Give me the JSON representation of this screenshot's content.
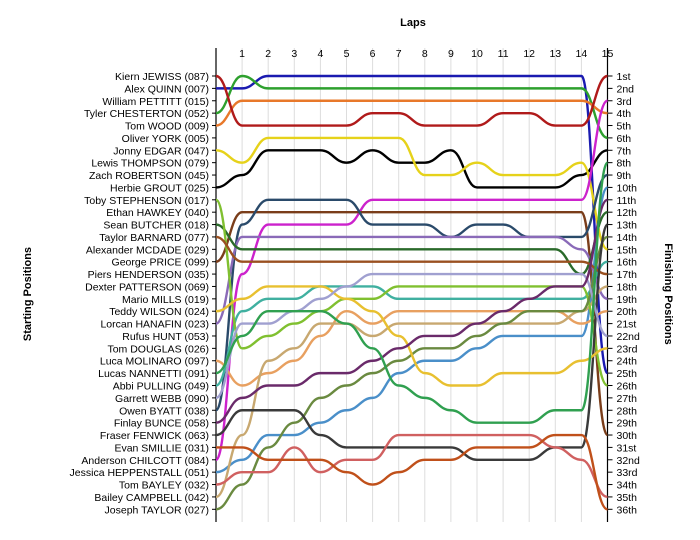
{
  "chart_data": {
    "type": "line",
    "title": "Laps",
    "xlabel": "Laps",
    "ylabel_left": "Starting Positions",
    "ylabel_right": "Finishing Positions",
    "x": [
      0,
      1,
      2,
      3,
      4,
      5,
      6,
      7,
      8,
      9,
      10,
      11,
      12,
      13,
      14,
      15
    ],
    "x_tick_labels": [
      "1",
      "2",
      "3",
      "4",
      "5",
      "6",
      "7",
      "8",
      "9",
      "10",
      "11",
      "12",
      "13",
      "14",
      "15"
    ],
    "driver_labels": [
      "Kiern JEWISS (087)",
      "Alex QUINN (007)",
      "William PETTITT (015)",
      "Tyler CHESTERTON (052)",
      "Tom WOOD (009)",
      "Oliver YORK (005)",
      "Jonny EDGAR (047)",
      "Lewis THOMPSON (079)",
      "Zach ROBERTSON (045)",
      "Herbie GROUT (025)",
      "Toby STEPHENSON (017)",
      "Ethan HAWKEY (040)",
      "Sean BUTCHER (018)",
      "Taylor BARNARD (077)",
      "Alexander MCDADE (029)",
      "George PRICE (099)",
      "Piers HENDERSON (035)",
      "Dexter PATTERSON (069)",
      "Mario MILLS (019)",
      "Teddy WILSON (024)",
      "Lorcan HANAFIN (023)",
      "Rufus HUNT (053)",
      "Tom DOUGLAS (026)",
      "Luca MOLINARO (097)",
      "Lucas NANNETTI (091)",
      "Abbi PULLING (049)",
      "Garrett WEBB (090)",
      "Owen BYATT (038)",
      "Finlay BUNCE (058)",
      "Fraser FENWICK (063)",
      "Evan SMILLIE (031)",
      "Anderson CHILCOTT (084)",
      "Jessica HEPPENSTALL (051)",
      "Tom BAYLEY (032)",
      "Bailey CAMPBELL (042)",
      "Joseph TAYLOR (027)"
    ],
    "finish_labels": [
      "1st",
      "2nd",
      "3rd",
      "4th",
      "5th",
      "6th",
      "7th",
      "8th",
      "9th",
      "10th",
      "11th",
      "12th",
      "13th",
      "14th",
      "15th",
      "16th",
      "17th",
      "18th",
      "19th",
      "20th",
      "21st",
      "22nd",
      "23rd",
      "24th",
      "25th",
      "26th",
      "27th",
      "28th",
      "29th",
      "30th",
      "31st",
      "32nd",
      "33rd",
      "34th",
      "35th",
      "36th"
    ],
    "series": [
      {
        "color": "#1a1ab0",
        "values": [
          2,
          2,
          1,
          1,
          1,
          1,
          1,
          1,
          1,
          1,
          1,
          1,
          1,
          1,
          1,
          25
        ]
      },
      {
        "color": "#2ea02e",
        "values": [
          4,
          1,
          2,
          2,
          2,
          2,
          2,
          2,
          2,
          2,
          2,
          2,
          2,
          2,
          2,
          6
        ]
      },
      {
        "color": "#e8782a",
        "values": [
          5,
          3,
          3,
          3,
          3,
          3,
          3,
          3,
          3,
          3,
          3,
          3,
          3,
          3,
          3,
          4
        ]
      },
      {
        "color": "#b01a1a",
        "values": [
          1,
          5,
          5,
          5,
          5,
          5,
          4,
          4,
          5,
          5,
          5,
          4,
          4,
          5,
          5,
          1
        ]
      },
      {
        "color": "#000000",
        "values": [
          10,
          9,
          7,
          7,
          7,
          8,
          7,
          8,
          8,
          7,
          10,
          10,
          10,
          10,
          9,
          7
        ]
      },
      {
        "color": "#e6d21a",
        "values": [
          7,
          8,
          6,
          6,
          6,
          6,
          6,
          6,
          9,
          9,
          8,
          9,
          9,
          9,
          8,
          15
        ]
      },
      {
        "color": "#cc22cc",
        "values": [
          32,
          17,
          13,
          13,
          13,
          13,
          11,
          11,
          11,
          11,
          11,
          11,
          11,
          11,
          11,
          3
        ]
      },
      {
        "color": "#7a3d1a",
        "values": [
          16,
          12,
          12,
          12,
          12,
          12,
          12,
          12,
          12,
          12,
          12,
          12,
          12,
          12,
          12,
          30
        ]
      },
      {
        "color": "#4a8fc9",
        "values": [
          33,
          32,
          30,
          30,
          29,
          28,
          27,
          25,
          24,
          24,
          23,
          22,
          22,
          22,
          22,
          10
        ]
      },
      {
        "color": "#2a4a6a",
        "values": [
          28,
          13,
          11,
          11,
          11,
          11,
          13,
          13,
          13,
          14,
          13,
          13,
          14,
          14,
          14,
          9
        ]
      },
      {
        "color": "#e8a060",
        "values": [
          24,
          26,
          25,
          24,
          22,
          20,
          21,
          20,
          20,
          20,
          20,
          20,
          20,
          20,
          21,
          20
        ]
      },
      {
        "color": "#8a6ab8",
        "values": [
          21,
          14,
          14,
          14,
          14,
          14,
          14,
          14,
          14,
          14,
          14,
          14,
          14,
          14,
          15,
          19
        ]
      },
      {
        "color": "#40b0a0",
        "values": [
          26,
          20,
          19,
          19,
          18,
          18,
          18,
          19,
          19,
          19,
          19,
          19,
          19,
          19,
          19,
          16
        ]
      },
      {
        "color": "#2a6a2a",
        "values": [
          13,
          15,
          15,
          15,
          15,
          15,
          15,
          15,
          15,
          15,
          15,
          15,
          15,
          15,
          17,
          12
        ]
      },
      {
        "color": "#c8a870",
        "values": [
          35,
          30,
          24,
          23,
          21,
          21,
          22,
          21,
          21,
          21,
          21,
          21,
          21,
          21,
          20,
          18
        ]
      },
      {
        "color": "#80c030",
        "values": [
          11,
          23,
          22,
          21,
          20,
          19,
          19,
          18,
          18,
          18,
          18,
          18,
          18,
          18,
          18,
          26
        ]
      },
      {
        "color": "#9a5020",
        "values": [
          14,
          16,
          16,
          16,
          16,
          16,
          16,
          16,
          16,
          16,
          16,
          16,
          16,
          16,
          16,
          17
        ]
      },
      {
        "color": "#6a8a40",
        "values": [
          36,
          34,
          31,
          29,
          27,
          26,
          25,
          24,
          23,
          23,
          22,
          21,
          20,
          20,
          20,
          14
        ]
      },
      {
        "color": "#3a3a3a",
        "values": [
          30,
          28,
          28,
          28,
          30,
          31,
          31,
          31,
          31,
          31,
          32,
          32,
          32,
          31,
          31,
          13
        ]
      },
      {
        "color": "#d06060",
        "values": [
          34,
          33,
          33,
          31,
          33,
          32,
          32,
          30,
          30,
          30,
          30,
          30,
          30,
          31,
          32,
          35
        ]
      },
      {
        "color": "#e8c030",
        "values": [
          20,
          19,
          18,
          18,
          18,
          19,
          20,
          22,
          25,
          26,
          26,
          25,
          25,
          25,
          24,
          23
        ]
      },
      {
        "color": "#a0a0d0",
        "values": [
          27,
          21,
          21,
          20,
          19,
          18,
          17,
          17,
          17,
          17,
          17,
          17,
          17,
          17,
          17,
          22
        ]
      },
      {
        "color": "#6a2a6a",
        "values": [
          29,
          27,
          26,
          26,
          25,
          25,
          24,
          23,
          22,
          22,
          21,
          20,
          19,
          18,
          18,
          11
        ]
      },
      {
        "color": "#30a050",
        "values": [
          25,
          22,
          20,
          20,
          20,
          21,
          23,
          26,
          27,
          28,
          29,
          29,
          29,
          28,
          28,
          8
        ]
      },
      {
        "color": "#c0501a",
        "values": [
          31,
          31,
          32,
          32,
          32,
          33,
          34,
          33,
          32,
          32,
          31,
          31,
          31,
          30,
          30,
          36
        ]
      }
    ]
  }
}
